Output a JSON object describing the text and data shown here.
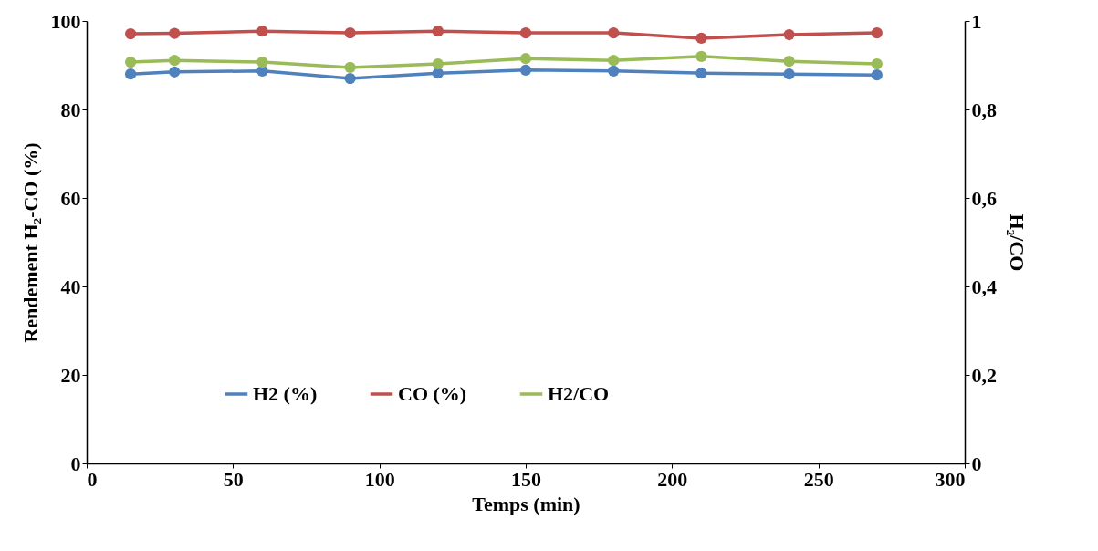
{
  "chart_data": {
    "type": "line",
    "xlabel": "Temps (min)",
    "ylabel": "Rendement H₂-CO (%)",
    "y2label": "H₂/CO",
    "x": [
      15,
      30,
      60,
      90,
      120,
      150,
      180,
      210,
      240,
      270
    ],
    "series": [
      {
        "name": "H2 (%)",
        "color": "#4f81bd",
        "values": [
          88.0,
          88.5,
          88.7,
          87.0,
          88.2,
          88.9,
          88.7,
          88.2,
          88.0,
          87.8
        ]
      },
      {
        "name": "CO (%)",
        "color": "#c0504d",
        "values": [
          97.1,
          97.2,
          97.7,
          97.3,
          97.7,
          97.3,
          97.3,
          96.1,
          96.9,
          97.3
        ]
      },
      {
        "name": "H2/CO",
        "color": "#9bbb59",
        "axis": "y2",
        "values": [
          0.907,
          0.911,
          0.907,
          0.895,
          0.903,
          0.915,
          0.911,
          0.92,
          0.909,
          0.903
        ]
      }
    ],
    "xlim": [
      0,
      300
    ],
    "xticks": [
      0,
      50,
      100,
      150,
      200,
      250,
      300
    ],
    "ylim": [
      0,
      100
    ],
    "yticks": [
      0,
      20,
      40,
      60,
      80,
      100
    ],
    "y2lim": [
      0,
      1
    ],
    "y2ticks": [
      0,
      {
        "value": 0.2,
        "label": "0,2"
      },
      {
        "value": 0.4,
        "label": "0,4"
      },
      {
        "value": 0.6,
        "label": "0,6"
      },
      {
        "value": 0.8,
        "label": "0,8"
      },
      1
    ],
    "grid": false,
    "legend": "bottom",
    "marker": "circle",
    "line_style": "solid"
  }
}
